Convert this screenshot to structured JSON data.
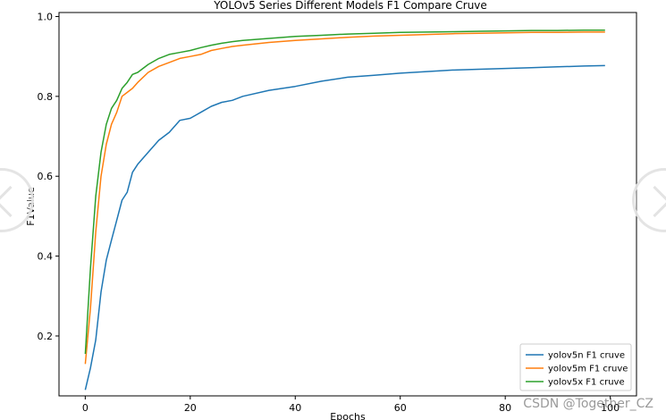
{
  "chart_data": {
    "type": "line",
    "title": "YOLOv5 Series Different Models F1 Compare Cruve",
    "xlabel": "Epochs",
    "ylabel": "F1Value",
    "xlim": [
      -5,
      105
    ],
    "ylim": [
      0.05,
      1.01
    ],
    "xticks": [
      0,
      20,
      40,
      60,
      80,
      100
    ],
    "yticks": [
      0.2,
      0.4,
      0.6,
      0.8,
      1.0
    ],
    "grid": false,
    "legend_position": "lower-right",
    "series": [
      {
        "name": "yolov5n F1 cruve",
        "color": "#1f77b4",
        "x": [
          0,
          1,
          2,
          3,
          4,
          5,
          6,
          7,
          8,
          9,
          10,
          12,
          14,
          16,
          18,
          20,
          22,
          24,
          26,
          28,
          30,
          35,
          40,
          45,
          50,
          55,
          60,
          65,
          70,
          75,
          80,
          85,
          90,
          95,
          99
        ],
        "y": [
          0.065,
          0.12,
          0.19,
          0.31,
          0.39,
          0.44,
          0.49,
          0.54,
          0.56,
          0.61,
          0.63,
          0.66,
          0.69,
          0.71,
          0.74,
          0.745,
          0.76,
          0.775,
          0.785,
          0.79,
          0.8,
          0.815,
          0.825,
          0.838,
          0.848,
          0.853,
          0.858,
          0.862,
          0.866,
          0.868,
          0.87,
          0.872,
          0.874,
          0.876,
          0.877
        ]
      },
      {
        "name": "yolov5m F1 cruve",
        "color": "#ff7f0e",
        "x": [
          0,
          1,
          2,
          3,
          4,
          5,
          6,
          7,
          8,
          9,
          10,
          12,
          14,
          16,
          18,
          20,
          22,
          24,
          26,
          28,
          30,
          35,
          40,
          45,
          50,
          55,
          60,
          65,
          70,
          75,
          80,
          85,
          90,
          95,
          99
        ],
        "y": [
          0.13,
          0.27,
          0.46,
          0.6,
          0.68,
          0.73,
          0.76,
          0.8,
          0.81,
          0.82,
          0.835,
          0.86,
          0.875,
          0.885,
          0.895,
          0.9,
          0.905,
          0.915,
          0.92,
          0.925,
          0.928,
          0.935,
          0.94,
          0.944,
          0.948,
          0.951,
          0.953,
          0.955,
          0.957,
          0.958,
          0.959,
          0.96,
          0.96,
          0.961,
          0.961
        ]
      },
      {
        "name": "yolov5x F1 cruve",
        "color": "#2ca02c",
        "x": [
          0,
          1,
          2,
          3,
          4,
          5,
          6,
          7,
          8,
          9,
          10,
          12,
          14,
          16,
          18,
          20,
          22,
          24,
          26,
          28,
          30,
          35,
          40,
          45,
          50,
          55,
          60,
          65,
          70,
          75,
          80,
          85,
          90,
          95,
          99
        ],
        "y": [
          0.155,
          0.37,
          0.55,
          0.66,
          0.73,
          0.77,
          0.79,
          0.82,
          0.835,
          0.855,
          0.86,
          0.88,
          0.895,
          0.905,
          0.91,
          0.915,
          0.922,
          0.928,
          0.933,
          0.937,
          0.94,
          0.945,
          0.95,
          0.953,
          0.956,
          0.958,
          0.96,
          0.961,
          0.962,
          0.963,
          0.964,
          0.965,
          0.965,
          0.966,
          0.966
        ]
      }
    ]
  },
  "watermark": "CSDN @Together_CZ",
  "nav": {
    "prev_icon": "chevron-left-icon",
    "next_icon": "chevron-right-icon"
  }
}
